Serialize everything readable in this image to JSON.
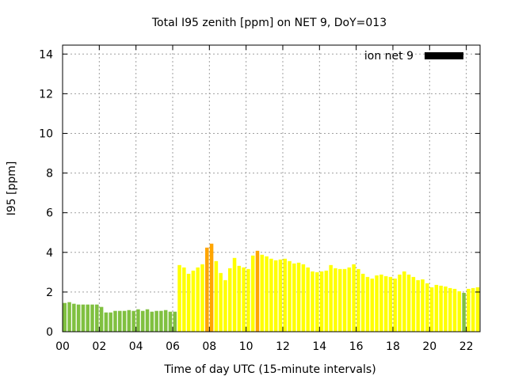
{
  "chart_data": {
    "type": "bar",
    "title": "Total I95 zenith [ppm] on NET 9, DoY=013",
    "xlabel": "Time of day UTC (15-minute intervals)",
    "ylabel": "I95 [ppm]",
    "xlim": [
      0,
      22.75
    ],
    "ylim": [
      0,
      14.45
    ],
    "xticks": [
      0,
      2,
      4,
      6,
      8,
      10,
      12,
      14,
      16,
      18,
      20,
      22
    ],
    "xtick_labels": [
      "00",
      "02",
      "04",
      "06",
      "08",
      "10",
      "12",
      "14",
      "16",
      "18",
      "20",
      "22"
    ],
    "yticks": [
      0,
      2,
      4,
      6,
      8,
      10,
      12,
      14
    ],
    "ytick_labels": [
      "0",
      "2",
      "4",
      "6",
      "8",
      "10",
      "12",
      "14"
    ],
    "grid": true,
    "legend": {
      "label": "ion net 9",
      "placement": "top-right",
      "color": "#000000"
    },
    "interval_hours": 0.25,
    "colors": {
      "green": "#80c040",
      "yellow": "#ffff00",
      "orange": "#ffa500"
    },
    "values": [
      1.45,
      1.49,
      1.41,
      1.37,
      1.37,
      1.37,
      1.37,
      1.37,
      1.25,
      0.97,
      0.97,
      1.05,
      1.05,
      1.05,
      1.09,
      1.05,
      1.13,
      1.05,
      1.13,
      1.01,
      1.05,
      1.05,
      1.09,
      1.01,
      1.01,
      3.36,
      3.24,
      2.92,
      3.08,
      3.24,
      3.4,
      4.24,
      4.44,
      3.56,
      2.96,
      2.6,
      3.2,
      3.72,
      3.32,
      3.24,
      3.16,
      3.84,
      4.08,
      3.88,
      3.8,
      3.68,
      3.6,
      3.64,
      3.68,
      3.56,
      3.44,
      3.48,
      3.4,
      3.24,
      3.04,
      3.0,
      3.04,
      3.08,
      3.36,
      3.2,
      3.16,
      3.16,
      3.24,
      3.4,
      3.16,
      2.92,
      2.76,
      2.68,
      2.84,
      2.88,
      2.8,
      2.76,
      2.68,
      2.88,
      3.04,
      2.88,
      2.76,
      2.6,
      2.64,
      2.44,
      2.24,
      2.36,
      2.32,
      2.28,
      2.2,
      2.16,
      2.04,
      1.96,
      2.16,
      2.2,
      2.24
    ],
    "bar_colors_note": "green <2, yellow 2-4, orange >=4",
    "thresholds": [
      2,
      4
    ]
  }
}
